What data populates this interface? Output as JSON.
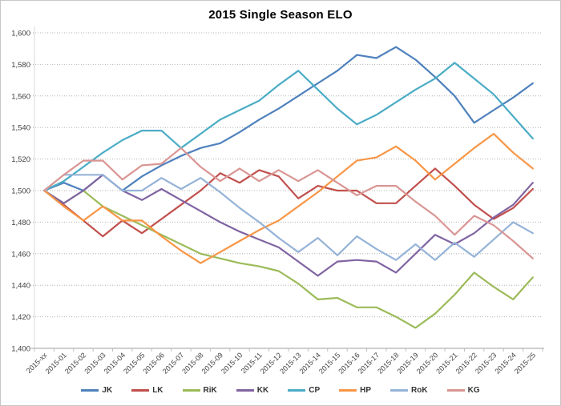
{
  "chart_data": {
    "type": "line",
    "title": "2015 Single Season ELO",
    "x_labels": [
      "2015-xx",
      "2015-01",
      "2015-02",
      "2015-03",
      "2015-04",
      "2015-05",
      "2015-06",
      "2015-07",
      "2015-08",
      "2015-09",
      "2015-10",
      "2015-11",
      "2015-12",
      "2015-13",
      "2015-14",
      "2015-15",
      "2015-16",
      "2015-17",
      "2015-18",
      "2015-19",
      "2015-20",
      "2015-21",
      "2015-22",
      "2015-23",
      "2015-24",
      "2015-25"
    ],
    "ylim": [
      1400,
      1600
    ],
    "y_tick_step": 20,
    "y_tick_labels": [
      "1,400",
      "1,420",
      "1,440",
      "1,460",
      "1,480",
      "1,500",
      "1,520",
      "1,540",
      "1,560",
      "1,580",
      "1,600"
    ],
    "grid": "horizontal dotted",
    "legend_position": "bottom",
    "series": [
      {
        "name": "JK",
        "color": "#4F81BD",
        "values": [
          1500,
          1505,
          1500,
          1510,
          1500,
          1509,
          1516,
          1522,
          1527,
          1530,
          1537,
          1545,
          1552,
          1560,
          1568,
          1576,
          1586,
          1584,
          1591,
          1583,
          1572,
          1560,
          1543,
          1551,
          1559,
          1568
        ]
      },
      {
        "name": "LK",
        "color": "#C0504D",
        "values": [
          1500,
          1491,
          1481,
          1471,
          1481,
          1473,
          1482,
          1491,
          1500,
          1511,
          1505,
          1513,
          1509,
          1495,
          1503,
          1500,
          1500,
          1492,
          1492,
          1503,
          1514,
          1503,
          1491,
          1482,
          1489,
          1501
        ]
      },
      {
        "name": "RiK",
        "color": "#9BBB59",
        "values": [
          1500,
          1492,
          1500,
          1490,
          1484,
          1478,
          1472,
          1466,
          1460,
          1457,
          1454,
          1452,
          1449,
          1441,
          1431,
          1432,
          1426,
          1426,
          1420,
          1413,
          1422,
          1434,
          1448,
          1439,
          1431,
          1445
        ]
      },
      {
        "name": "KK",
        "color": "#8064A2",
        "values": [
          1500,
          1492,
          1500,
          1510,
          1500,
          1494,
          1501,
          1494,
          1487,
          1480,
          1474,
          1469,
          1464,
          1455,
          1446,
          1455,
          1456,
          1455,
          1448,
          1460,
          1472,
          1466,
          1473,
          1483,
          1491,
          1505
        ]
      },
      {
        "name": "CP",
        "color": "#4BACC6",
        "values": [
          1500,
          1506,
          1515,
          1524,
          1532,
          1538,
          1538,
          1527,
          1536,
          1545,
          1551,
          1557,
          1567,
          1576,
          1564,
          1552,
          1542,
          1548,
          1556,
          1564,
          1571,
          1581,
          1571,
          1561,
          1547,
          1533
        ]
      },
      {
        "name": "HP",
        "color": "#F79646",
        "values": [
          1500,
          1490,
          1481,
          1490,
          1481,
          1481,
          1471,
          1462,
          1454,
          1461,
          1468,
          1475,
          1481,
          1490,
          1499,
          1509,
          1519,
          1521,
          1528,
          1519,
          1507,
          1517,
          1527,
          1536,
          1524,
          1514
        ]
      },
      {
        "name": "RoK",
        "color": "#95B3D7",
        "values": [
          1500,
          1510,
          1510,
          1510,
          1500,
          1500,
          1508,
          1501,
          1508,
          1499,
          1489,
          1480,
          1470,
          1461,
          1470,
          1459,
          1471,
          1463,
          1456,
          1466,
          1456,
          1467,
          1458,
          1469,
          1480,
          1473
        ]
      },
      {
        "name": "KG",
        "color": "#D99694",
        "values": [
          1500,
          1510,
          1519,
          1519,
          1507,
          1516,
          1517,
          1527,
          1515,
          1506,
          1514,
          1506,
          1513,
          1506,
          1513,
          1505,
          1497,
          1503,
          1503,
          1493,
          1484,
          1472,
          1484,
          1478,
          1468,
          1457
        ]
      }
    ]
  },
  "style": {
    "grid_color": "#b3b3b3",
    "axis_color": "#bfbfbf",
    "label_color": "#404040",
    "background": "#ffffff"
  }
}
